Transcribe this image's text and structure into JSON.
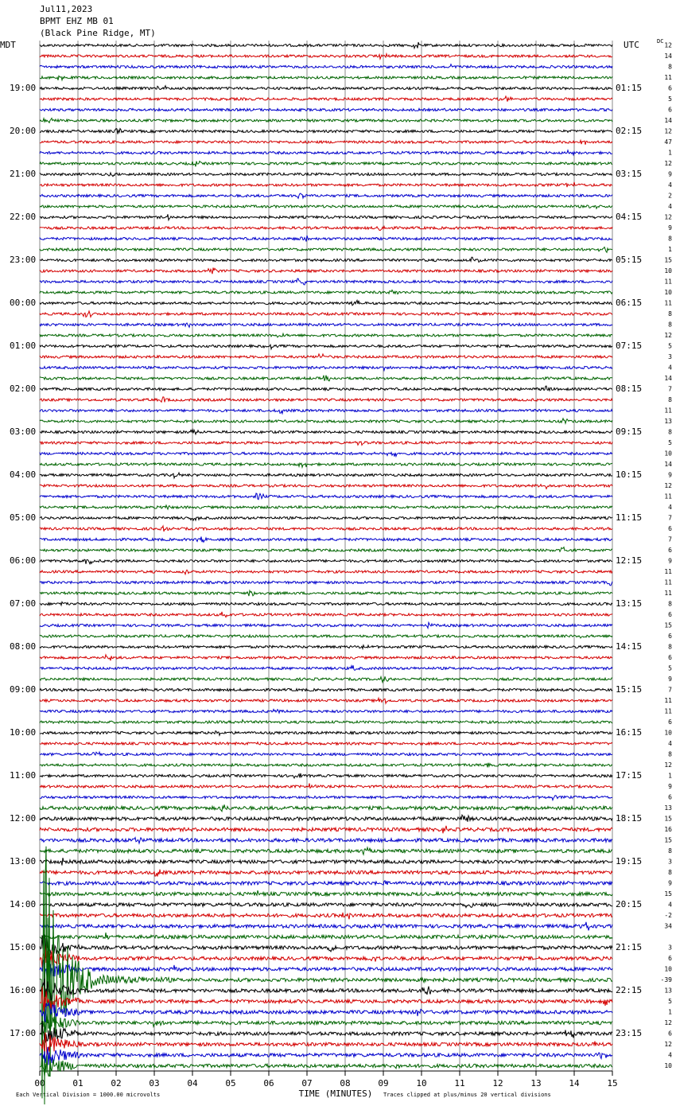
{
  "chart_data": {
    "type": "helicorder",
    "title_lines": [
      "Jul11,2023",
      "BPMT EHZ MB 01",
      "(Black Pine Ridge, MT)"
    ],
    "left_axis_label": "MDT",
    "right_axis_label": "UTC",
    "offset_label": "DC",
    "x_label": "TIME (MINUTES)",
    "footer_left": "Each Vertical Division = 1000.00 microvolts",
    "footer_right": "Traces clipped at plus/minus 20 vertical divisions",
    "xlim": [
      0,
      15
    ],
    "xticks": [
      {
        "value": 0,
        "label": "00"
      },
      {
        "value": 1,
        "label": "01"
      },
      {
        "value": 2,
        "label": "02"
      },
      {
        "value": 3,
        "label": "03"
      },
      {
        "value": 4,
        "label": "04"
      },
      {
        "value": 5,
        "label": "05"
      },
      {
        "value": 6,
        "label": "06"
      },
      {
        "value": 7,
        "label": "07"
      },
      {
        "value": 8,
        "label": "08"
      },
      {
        "value": 9,
        "label": "09"
      },
      10,
      11,
      12,
      13,
      14,
      15
    ],
    "grid": true,
    "trace_colors": [
      "#000000",
      "#d40000",
      "#0000cc",
      "#006400"
    ],
    "mdt_labels": [
      null,
      null,
      null,
      null,
      "19:00",
      null,
      null,
      null,
      "20:00",
      null,
      null,
      null,
      "21:00",
      null,
      null,
      null,
      "22:00",
      null,
      null,
      null,
      "23:00",
      null,
      null,
      null,
      "00:00",
      null,
      null,
      null,
      "01:00",
      null,
      null,
      null,
      "02:00",
      null,
      null,
      null,
      "03:00",
      null,
      null,
      null,
      "04:00",
      null,
      null,
      null,
      "05:00",
      null,
      null,
      null,
      "06:00",
      null,
      null,
      null,
      "07:00",
      null,
      null,
      null,
      "08:00",
      null,
      null,
      null,
      "09:00",
      null,
      null,
      null,
      "10:00",
      null,
      null,
      null,
      "11:00",
      null,
      null,
      null,
      "12:00",
      null,
      null,
      null,
      "13:00",
      null,
      null,
      null,
      "14:00",
      null,
      null,
      null,
      "15:00",
      null,
      null,
      null,
      "16:00",
      null,
      null,
      null,
      "17:00",
      null,
      null,
      null
    ],
    "utc_labels": [
      null,
      null,
      null,
      null,
      "01:15",
      null,
      null,
      null,
      "02:15",
      null,
      null,
      null,
      "03:15",
      null,
      null,
      null,
      "04:15",
      null,
      null,
      null,
      "05:15",
      null,
      null,
      null,
      "06:15",
      null,
      null,
      null,
      "07:15",
      null,
      null,
      null,
      "08:15",
      null,
      null,
      null,
      "09:15",
      null,
      null,
      null,
      "10:15",
      null,
      null,
      null,
      "11:15",
      null,
      null,
      null,
      "12:15",
      null,
      null,
      null,
      "13:15",
      null,
      null,
      null,
      "14:15",
      null,
      null,
      null,
      "15:15",
      null,
      null,
      null,
      "16:15",
      null,
      null,
      null,
      "17:15",
      null,
      null,
      null,
      "18:15",
      null,
      null,
      null,
      "19:15",
      null,
      null,
      null,
      "20:15",
      null,
      null,
      null,
      "21:15",
      null,
      null,
      null,
      "22:15",
      null,
      null,
      null,
      "23:15",
      null,
      null,
      null
    ],
    "dc_offsets": [
      12,
      14,
      8,
      11,
      6,
      5,
      6,
      14,
      12,
      47,
      1,
      12,
      9,
      4,
      2,
      4,
      12,
      9,
      8,
      1,
      15,
      10,
      11,
      10,
      11,
      8,
      8,
      12,
      5,
      3,
      4,
      14,
      7,
      8,
      11,
      13,
      8,
      5,
      10,
      14,
      9,
      12,
      11,
      4,
      7,
      6,
      7,
      6,
      9,
      11,
      11,
      11,
      8,
      6,
      15,
      6,
      8,
      6,
      5,
      9,
      7,
      11,
      11,
      6,
      10,
      4,
      8,
      12,
      1,
      9,
      6,
      13,
      15,
      16,
      15,
      8,
      3,
      8,
      9,
      15,
      4,
      -2,
      34,
      null,
      3,
      6,
      10,
      -39,
      13,
      5,
      1,
      12,
      6,
      12,
      4,
      10
    ]
  }
}
